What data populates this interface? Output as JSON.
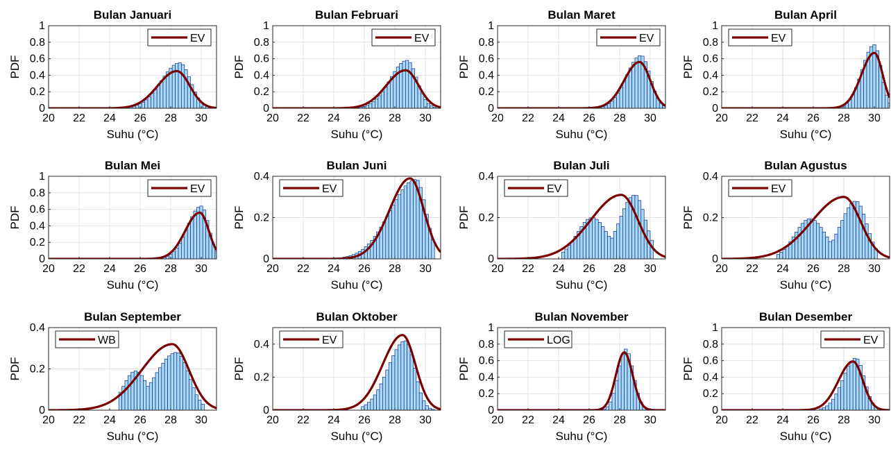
{
  "figure": {
    "ylabel": "PDF",
    "xlabel": "Suhu (°C)",
    "fit_color": "#7a0000",
    "bar_fill": "#a9d8f5",
    "bar_edge": "#0b2e88"
  },
  "chart_data": [
    {
      "type": "bar",
      "title": "Bulan Januari",
      "legend": "EV",
      "legend_position": "top-right",
      "xlabel": "Suhu (°C)",
      "ylabel": "PDF",
      "xlim": [
        20,
        31
      ],
      "ylim": [
        0,
        1
      ],
      "xticks": [
        "20",
        "22",
        "24",
        "26",
        "28",
        "30"
      ],
      "yticks": [
        "0",
        "0.2",
        "0.4",
        "0.6",
        "0.8",
        "1"
      ],
      "grid": true,
      "fit": {
        "name": "EV",
        "mode": 28.4,
        "peak": 0.45,
        "left_width": 1.25,
        "right_width": 0.85
      },
      "histogram": {
        "mode": 28.6,
        "peak": 0.55,
        "left_width": 1.2,
        "right_width": 0.7,
        "start": 25.3,
        "end": 30.5
      }
    },
    {
      "type": "bar",
      "title": "Bulan Februari",
      "legend": "EV",
      "legend_position": "top-right",
      "xlabel": "Suhu (°C)",
      "ylabel": "PDF",
      "xlim": [
        20,
        31
      ],
      "ylim": [
        0,
        1
      ],
      "xticks": [
        "20",
        "22",
        "24",
        "26",
        "28",
        "30"
      ],
      "yticks": [
        "0",
        "0.2",
        "0.4",
        "0.6",
        "0.8",
        "1"
      ],
      "grid": true,
      "fit": {
        "name": "EV",
        "mode": 28.7,
        "peak": 0.46,
        "left_width": 1.25,
        "right_width": 0.85
      },
      "histogram": {
        "mode": 28.8,
        "peak": 0.58,
        "left_width": 1.1,
        "right_width": 0.65,
        "start": 25.5,
        "end": 30.6
      }
    },
    {
      "type": "bar",
      "title": "Bulan Maret",
      "legend": "EV",
      "legend_position": "top-right",
      "xlabel": "Suhu (°C)",
      "ylabel": "PDF",
      "xlim": [
        20,
        31
      ],
      "ylim": [
        0,
        1
      ],
      "xticks": [
        "20",
        "22",
        "24",
        "26",
        "28",
        "30"
      ],
      "yticks": [
        "0",
        "0.2",
        "0.4",
        "0.6",
        "0.8",
        "1"
      ],
      "grid": true,
      "fit": {
        "name": "EV",
        "mode": 29.3,
        "peak": 0.56,
        "left_width": 1.0,
        "right_width": 0.7
      },
      "histogram": {
        "mode": 29.4,
        "peak": 0.64,
        "left_width": 0.95,
        "right_width": 0.6,
        "start": 26.6,
        "end": 30.9
      }
    },
    {
      "type": "bar",
      "title": "Bulan April",
      "legend": "EV",
      "legend_position": "top-left",
      "xlabel": "Suhu (°C)",
      "ylabel": "PDF",
      "xlim": [
        20,
        31
      ],
      "ylim": [
        0,
        1
      ],
      "xticks": [
        "20",
        "22",
        "24",
        "26",
        "28",
        "30"
      ],
      "yticks": [
        "0",
        "0.2",
        "0.4",
        "0.6",
        "0.8",
        "1"
      ],
      "grid": true,
      "fit": {
        "name": "EV",
        "mode": 30.0,
        "peak": 0.67,
        "left_width": 0.85,
        "right_width": 0.55
      },
      "histogram": {
        "mode": 30.0,
        "peak": 0.77,
        "left_width": 0.8,
        "right_width": 0.45,
        "start": 27.5,
        "end": 31.0
      }
    },
    {
      "type": "bar",
      "title": "Bulan Mei",
      "legend": "EV",
      "legend_position": "top-right",
      "xlabel": "Suhu (°C)",
      "ylabel": "PDF",
      "xlim": [
        20,
        31
      ],
      "ylim": [
        0,
        1
      ],
      "xticks": [
        "20",
        "22",
        "24",
        "26",
        "28",
        "30"
      ],
      "yticks": [
        "0",
        "0.2",
        "0.4",
        "0.6",
        "0.8",
        "1"
      ],
      "grid": true,
      "fit": {
        "name": "EV",
        "mode": 29.9,
        "peak": 0.56,
        "left_width": 0.95,
        "right_width": 0.6
      },
      "histogram": {
        "mode": 30.0,
        "peak": 0.64,
        "left_width": 0.9,
        "right_width": 0.5,
        "start": 27.3,
        "end": 31.0
      }
    },
    {
      "type": "bar",
      "title": "Bulan Juni",
      "legend": "EV",
      "legend_position": "top-left",
      "xlabel": "Suhu (°C)",
      "ylabel": "PDF",
      "xlim": [
        20,
        31
      ],
      "ylim": [
        0,
        0.4
      ],
      "xticks": [
        "20",
        "22",
        "24",
        "26",
        "28",
        "30"
      ],
      "yticks": [
        "0",
        "0.2",
        "0.4"
      ],
      "grid": true,
      "fit": {
        "name": "EV",
        "mode": 29.0,
        "peak": 0.39,
        "left_width": 1.35,
        "right_width": 0.9
      },
      "histogram": {
        "mode": 29.4,
        "peak": 0.385,
        "left_width": 1.7,
        "right_width": 0.65,
        "start": 24.6,
        "end": 30.6
      }
    },
    {
      "type": "bar",
      "title": "Bulan Juli",
      "legend": "EV",
      "legend_position": "top-left",
      "xlabel": "Suhu (°C)",
      "ylabel": "PDF",
      "xlim": [
        20,
        31
      ],
      "ylim": [
        0,
        0.4
      ],
      "xticks": [
        "20",
        "22",
        "24",
        "26",
        "28",
        "30"
      ],
      "yticks": [
        "0",
        "0.2",
        "0.4"
      ],
      "grid": true,
      "fit": {
        "name": "EV",
        "mode": 28.1,
        "peak": 0.31,
        "left_width": 2.0,
        "right_width": 1.1
      },
      "histogram": {
        "mode": 29.0,
        "peak": 0.31,
        "left_width": 1.0,
        "right_width": 0.7,
        "second_mode": 26.2,
        "second_peak": 0.2,
        "second_width": 1.0,
        "start": 24.2,
        "end": 30.2
      }
    },
    {
      "type": "bar",
      "title": "Bulan Agustus",
      "legend": "EV",
      "legend_position": "top-left",
      "xlabel": "Suhu (°C)",
      "ylabel": "PDF",
      "xlim": [
        20,
        31
      ],
      "ylim": [
        0,
        0.4
      ],
      "xticks": [
        "20",
        "22",
        "24",
        "26",
        "28",
        "30"
      ],
      "yticks": [
        "0",
        "0.2",
        "0.4"
      ],
      "grid": true,
      "fit": {
        "name": "EV",
        "mode": 28.0,
        "peak": 0.3,
        "left_width": 2.1,
        "right_width": 1.1
      },
      "histogram": {
        "mode": 28.8,
        "peak": 0.28,
        "left_width": 1.0,
        "right_width": 0.7,
        "second_mode": 25.8,
        "second_peak": 0.195,
        "second_width": 1.0,
        "start": 23.6,
        "end": 30.2
      }
    },
    {
      "type": "bar",
      "title": "Bulan September",
      "legend": "WB",
      "legend_position": "top-left",
      "xlabel": "Suhu (°C)",
      "ylabel": "PDF",
      "xlim": [
        20,
        31
      ],
      "ylim": [
        0,
        0.4
      ],
      "xticks": [
        "20",
        "22",
        "24",
        "26",
        "28",
        "30"
      ],
      "yticks": [
        "0",
        "0.2",
        "0.4"
      ],
      "grid": true,
      "fit": {
        "name": "WB",
        "mode": 28.1,
        "peak": 0.32,
        "left_width": 2.0,
        "right_width": 1.1
      },
      "histogram": {
        "mode": 28.4,
        "peak": 0.28,
        "left_width": 1.4,
        "right_width": 0.8,
        "second_mode": 25.7,
        "second_peak": 0.19,
        "second_width": 0.8,
        "start": 24.6,
        "end": 30.2
      }
    },
    {
      "type": "bar",
      "title": "Bulan Oktober",
      "legend": "EV",
      "legend_position": "top-left",
      "xlabel": "Suhu (°C)",
      "ylabel": "PDF",
      "xlim": [
        20,
        31
      ],
      "ylim": [
        0,
        0.5
      ],
      "xticks": [
        "20",
        "22",
        "24",
        "26",
        "28",
        "30"
      ],
      "yticks": [
        "0",
        "0.2",
        "0.4"
      ],
      "grid": true,
      "fit": {
        "name": "EV",
        "mode": 28.5,
        "peak": 0.455,
        "left_width": 1.3,
        "right_width": 0.85
      },
      "histogram": {
        "mode": 28.7,
        "peak": 0.42,
        "left_width": 1.15,
        "right_width": 0.6,
        "start": 25.8,
        "end": 30.5
      }
    },
    {
      "type": "bar",
      "title": "Bulan November",
      "legend": "LOG",
      "legend_position": "top-left",
      "xlabel": "Suhu (°C)",
      "ylabel": "PDF",
      "xlim": [
        20,
        31
      ],
      "ylim": [
        0,
        1
      ],
      "xticks": [
        "20",
        "22",
        "24",
        "26",
        "28",
        "30"
      ],
      "yticks": [
        "0",
        "0.2",
        "0.4",
        "0.6",
        "0.8",
        "1"
      ],
      "grid": true,
      "fit": {
        "name": "LOG",
        "mode": 28.3,
        "peak": 0.7,
        "left_width": 0.55,
        "right_width": 0.55
      },
      "histogram": {
        "mode": 28.4,
        "peak": 0.74,
        "left_width": 0.5,
        "right_width": 0.5,
        "start": 26.5,
        "end": 30.3
      }
    },
    {
      "type": "bar",
      "title": "Bulan Desember",
      "legend": "EV",
      "legend_position": "top-right",
      "xlabel": "Suhu (°C)",
      "ylabel": "PDF",
      "xlim": [
        20,
        31
      ],
      "ylim": [
        0,
        1
      ],
      "xticks": [
        "20",
        "22",
        "24",
        "26",
        "28",
        "30"
      ],
      "yticks": [
        "0",
        "0.2",
        "0.4",
        "0.6",
        "0.8",
        "1"
      ],
      "grid": true,
      "fit": {
        "name": "EV",
        "mode": 28.6,
        "peak": 0.59,
        "left_width": 0.95,
        "right_width": 0.65
      },
      "histogram": {
        "mode": 28.8,
        "peak": 0.63,
        "left_width": 0.85,
        "right_width": 0.55,
        "start": 26.4,
        "end": 30.3
      }
    }
  ]
}
